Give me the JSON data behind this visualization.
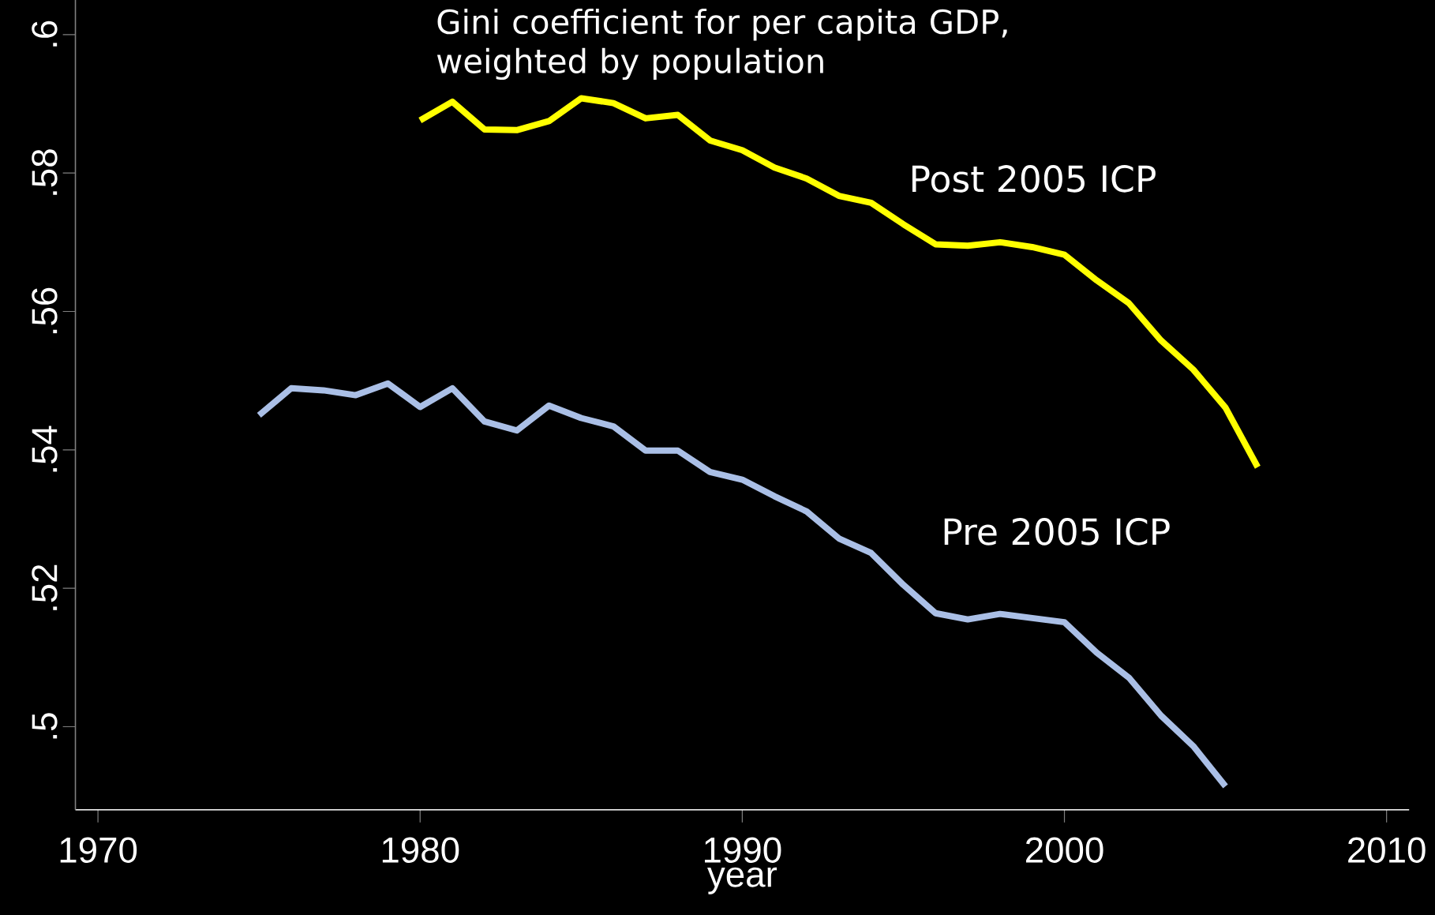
{
  "chart_data": {
    "type": "line",
    "title": "Gini coefficient for per capita GDP,\nweighted by population",
    "xlabel": "year",
    "xlim": [
      1969.3,
      2010.7
    ],
    "ylim": [
      0.488,
      0.605
    ],
    "xticks": [
      1970,
      1980,
      1990,
      2000,
      2010
    ],
    "yticks": [
      {
        "value": 0.5,
        "label": ".5"
      },
      {
        "value": 0.52,
        "label": ".52"
      },
      {
        "value": 0.54,
        "label": ".54"
      },
      {
        "value": 0.56,
        "label": ".56"
      },
      {
        "value": 0.58,
        "label": ".58"
      },
      {
        "value": 0.6,
        "label": ".6"
      }
    ],
    "marker": "none",
    "grid": false,
    "series": [
      {
        "name": "Post 2005 ICP",
        "color": "#ffff00",
        "x": [
          1980,
          1981,
          1982,
          1983,
          1984,
          1985,
          1986,
          1987,
          1988,
          1989,
          1990,
          1991,
          1992,
          1993,
          1994,
          1995,
          1996,
          1997,
          1998,
          1999,
          2000,
          2001,
          2002,
          2003,
          2004,
          2005,
          2006
        ],
        "values": [
          0.5876,
          0.5903,
          0.5863,
          0.5862,
          0.5875,
          0.5908,
          0.5901,
          0.5879,
          0.5884,
          0.5847,
          0.5833,
          0.5808,
          0.5792,
          0.5767,
          0.5757,
          0.5726,
          0.5697,
          0.5695,
          0.57,
          0.5693,
          0.5682,
          0.5645,
          0.5612,
          0.5558,
          0.5516,
          0.5461,
          0.5375
        ]
      },
      {
        "name": "Pre 2005 ICP",
        "color": "#aabfe6",
        "x": [
          1975,
          1976,
          1977,
          1978,
          1979,
          1980,
          1981,
          1982,
          1983,
          1984,
          1985,
          1986,
          1987,
          1988,
          1989,
          1990,
          1991,
          1992,
          1993,
          1994,
          1995,
          1996,
          1997,
          1998,
          1999,
          2000,
          2001,
          2002,
          2003,
          2004,
          2005
        ],
        "values": [
          0.545,
          0.5489,
          0.5486,
          0.5479,
          0.5496,
          0.5462,
          0.5489,
          0.5441,
          0.5428,
          0.5464,
          0.5446,
          0.5434,
          0.5399,
          0.5399,
          0.5368,
          0.5357,
          0.5333,
          0.5311,
          0.5272,
          0.5251,
          0.5205,
          0.5164,
          0.5155,
          0.5163,
          0.5157,
          0.5151,
          0.5107,
          0.5071,
          0.5016,
          0.4972,
          0.4914
        ]
      }
    ]
  }
}
